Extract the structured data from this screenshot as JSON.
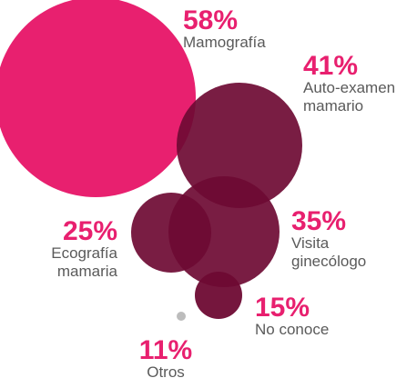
{
  "chart_data": {
    "type": "bubble",
    "title": "",
    "colors": {
      "highlight": "#e8206f",
      "primary": "#6e0a33",
      "minor": "#bcbcbc",
      "label_text": "#5a5a5a",
      "percent_text": "#e8206f"
    },
    "series": [
      {
        "id": "mamografia",
        "value": 58,
        "value_label": "58%",
        "label_lines": [
          "Mamografía"
        ],
        "color_key": "highlight"
      },
      {
        "id": "auto-examen",
        "value": 41,
        "value_label": "41%",
        "label_lines": [
          "Auto-examen",
          "mamario"
        ],
        "color_key": "primary"
      },
      {
        "id": "visita-ginecologo",
        "value": 35,
        "value_label": "35%",
        "label_lines": [
          "Visita",
          "ginecólogo"
        ],
        "color_key": "primary"
      },
      {
        "id": "ecografia",
        "value": 25,
        "value_label": "25%",
        "label_lines": [
          "Ecografía",
          "mamaria"
        ],
        "color_key": "primary"
      },
      {
        "id": "no-conoce",
        "value": 15,
        "value_label": "15%",
        "label_lines": [
          "No conoce"
        ],
        "color_key": "primary"
      },
      {
        "id": "otros",
        "value": 11,
        "value_label": "11%",
        "label_lines": [
          "Otros"
        ],
        "color_key": "minor"
      }
    ]
  }
}
